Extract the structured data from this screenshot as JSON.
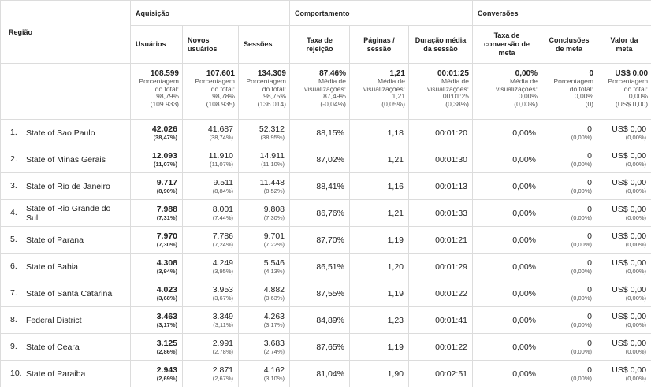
{
  "headers": {
    "region": "Região",
    "groups": {
      "acquisition": "Aquisição",
      "behavior": "Comportamento",
      "conversions": "Conversões"
    },
    "columns": {
      "users": "Usuários",
      "new_users": "Novos usuários",
      "sessions": "Sessões",
      "bounce": "Taxa de rejeição",
      "pages": "Páginas / sessão",
      "duration": "Duração média da sessão",
      "conv_rate": "Taxa de conversão de meta",
      "goal_completions": "Conclusões de meta",
      "goal_value": "Valor da meta"
    }
  },
  "totals": {
    "users": {
      "value": "108.599",
      "l1": "Porcentagem",
      "l2": "do total:",
      "l3": "98,79%",
      "l4": "(109.933)"
    },
    "new_users": {
      "value": "107.601",
      "l1": "Porcentagem",
      "l2": "do total:",
      "l3": "98,78%",
      "l4": "(108.935)"
    },
    "sessions": {
      "value": "134.309",
      "l1": "Porcentagem",
      "l2": "do total:",
      "l3": "98,75%",
      "l4": "(136.014)"
    },
    "bounce": {
      "value": "87,46%",
      "l1": "Média de",
      "l2": "visualizações:",
      "l3": "87,49%",
      "l4": "(-0,04%)"
    },
    "pages": {
      "value": "1,21",
      "l1": "Média de",
      "l2": "visualizações:",
      "l3": "1,21",
      "l4": "(0,05%)"
    },
    "duration": {
      "value": "00:01:25",
      "l1": "Média de",
      "l2": "visualizações:",
      "l3": "00:01:25",
      "l4": "(0,38%)"
    },
    "conv_rate": {
      "value": "0,00%",
      "l1": "Média de",
      "l2": "visualizações:",
      "l3": "0,00%",
      "l4": "(0,00%)"
    },
    "goal_completions": {
      "value": "0",
      "l1": "Porcentagem",
      "l2": "do total:",
      "l3": "0,00%",
      "l4": "(0)"
    },
    "goal_value": {
      "value": "US$ 0,00",
      "l1": "Porcentagem",
      "l2": "do total:",
      "l3": "0,00%",
      "l4": "(US$ 0,00)"
    }
  },
  "rows": [
    {
      "idx": "1.",
      "name": "State of Sao Paulo",
      "users": "42.026",
      "users_pct": "(38,47%)",
      "new": "41.687",
      "new_pct": "(38,74%)",
      "sessions": "52.312",
      "sessions_pct": "(38,95%)",
      "bounce": "88,15%",
      "pages": "1,18",
      "duration": "00:01:20",
      "conv": "0,00%",
      "goals": "0",
      "goals_pct": "(0,00%)",
      "value": "US$ 0,00",
      "value_pct": "(0,00%)"
    },
    {
      "idx": "2.",
      "name": "State of Minas Gerais",
      "users": "12.093",
      "users_pct": "(11,07%)",
      "new": "11.910",
      "new_pct": "(11,07%)",
      "sessions": "14.911",
      "sessions_pct": "(11,10%)",
      "bounce": "87,02%",
      "pages": "1,21",
      "duration": "00:01:30",
      "conv": "0,00%",
      "goals": "0",
      "goals_pct": "(0,00%)",
      "value": "US$ 0,00",
      "value_pct": "(0,00%)"
    },
    {
      "idx": "3.",
      "name": "State of Rio de Janeiro",
      "users": "9.717",
      "users_pct": "(8,90%)",
      "new": "9.511",
      "new_pct": "(8,84%)",
      "sessions": "11.448",
      "sessions_pct": "(8,52%)",
      "bounce": "88,41%",
      "pages": "1,16",
      "duration": "00:01:13",
      "conv": "0,00%",
      "goals": "0",
      "goals_pct": "(0,00%)",
      "value": "US$ 0,00",
      "value_pct": "(0,00%)"
    },
    {
      "idx": "4.",
      "name": "State of Rio Grande do Sul",
      "users": "7.988",
      "users_pct": "(7,31%)",
      "new": "8.001",
      "new_pct": "(7,44%)",
      "sessions": "9.808",
      "sessions_pct": "(7,30%)",
      "bounce": "86,76%",
      "pages": "1,21",
      "duration": "00:01:33",
      "conv": "0,00%",
      "goals": "0",
      "goals_pct": "(0,00%)",
      "value": "US$ 0,00",
      "value_pct": "(0,00%)"
    },
    {
      "idx": "5.",
      "name": "State of Parana",
      "users": "7.970",
      "users_pct": "(7,30%)",
      "new": "7.786",
      "new_pct": "(7,24%)",
      "sessions": "9.701",
      "sessions_pct": "(7,22%)",
      "bounce": "87,70%",
      "pages": "1,19",
      "duration": "00:01:21",
      "conv": "0,00%",
      "goals": "0",
      "goals_pct": "(0,00%)",
      "value": "US$ 0,00",
      "value_pct": "(0,00%)"
    },
    {
      "idx": "6.",
      "name": "State of Bahia",
      "users": "4.308",
      "users_pct": "(3,94%)",
      "new": "4.249",
      "new_pct": "(3,95%)",
      "sessions": "5.546",
      "sessions_pct": "(4,13%)",
      "bounce": "86,51%",
      "pages": "1,20",
      "duration": "00:01:29",
      "conv": "0,00%",
      "goals": "0",
      "goals_pct": "(0,00%)",
      "value": "US$ 0,00",
      "value_pct": "(0,00%)"
    },
    {
      "idx": "7.",
      "name": "State of Santa Catarina",
      "users": "4.023",
      "users_pct": "(3,68%)",
      "new": "3.953",
      "new_pct": "(3,67%)",
      "sessions": "4.882",
      "sessions_pct": "(3,63%)",
      "bounce": "87,55%",
      "pages": "1,19",
      "duration": "00:01:22",
      "conv": "0,00%",
      "goals": "0",
      "goals_pct": "(0,00%)",
      "value": "US$ 0,00",
      "value_pct": "(0,00%)"
    },
    {
      "idx": "8.",
      "name": "Federal District",
      "users": "3.463",
      "users_pct": "(3,17%)",
      "new": "3.349",
      "new_pct": "(3,11%)",
      "sessions": "4.263",
      "sessions_pct": "(3,17%)",
      "bounce": "84,89%",
      "pages": "1,23",
      "duration": "00:01:41",
      "conv": "0,00%",
      "goals": "0",
      "goals_pct": "(0,00%)",
      "value": "US$ 0,00",
      "value_pct": "(0,00%)"
    },
    {
      "idx": "9.",
      "name": "State of Ceara",
      "users": "3.125",
      "users_pct": "(2,86%)",
      "new": "2.991",
      "new_pct": "(2,78%)",
      "sessions": "3.683",
      "sessions_pct": "(2,74%)",
      "bounce": "87,65%",
      "pages": "1,19",
      "duration": "00:01:22",
      "conv": "0,00%",
      "goals": "0",
      "goals_pct": "(0,00%)",
      "value": "US$ 0,00",
      "value_pct": "(0,00%)"
    },
    {
      "idx": "10.",
      "name": "State of Paraiba",
      "users": "2.943",
      "users_pct": "(2,69%)",
      "new": "2.871",
      "new_pct": "(2,67%)",
      "sessions": "4.162",
      "sessions_pct": "(3,10%)",
      "bounce": "81,04%",
      "pages": "1,90",
      "duration": "00:02:51",
      "conv": "0,00%",
      "goals": "0",
      "goals_pct": "(0,00%)",
      "value": "US$ 0,00",
      "value_pct": "(0,00%)"
    }
  ]
}
